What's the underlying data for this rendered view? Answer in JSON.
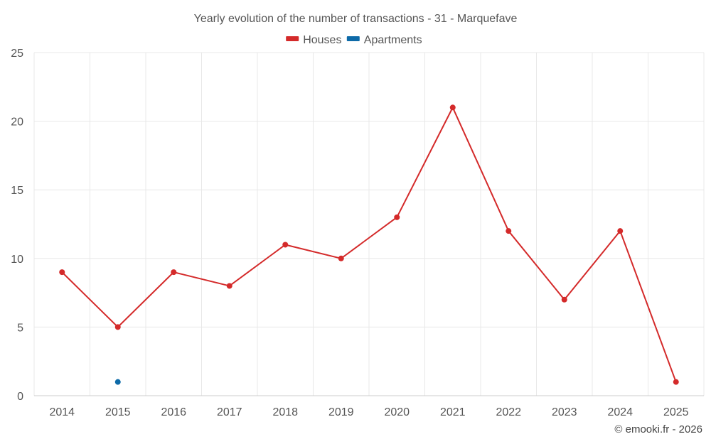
{
  "chart_data": {
    "type": "line",
    "title": "Yearly evolution of the number of transactions - 31 - Marquefave",
    "categories": [
      "2014",
      "2015",
      "2016",
      "2017",
      "2018",
      "2019",
      "2020",
      "2021",
      "2022",
      "2023",
      "2024",
      "2025"
    ],
    "ylim": [
      0,
      25
    ],
    "yticks": [
      0,
      5,
      10,
      15,
      20,
      25
    ],
    "grid": true,
    "legend_position": "top-center",
    "series": [
      {
        "name": "Houses",
        "color": "#d42a2a",
        "values": [
          9,
          5,
          9,
          8,
          11,
          10,
          13,
          21,
          12,
          7,
          12,
          1
        ]
      },
      {
        "name": "Apartments",
        "color": "#0d6aa8",
        "values": [
          null,
          1,
          null,
          null,
          null,
          null,
          null,
          null,
          null,
          null,
          null,
          null
        ]
      }
    ],
    "xlabel": "",
    "ylabel": ""
  },
  "credit": "© emooki.fr - 2026"
}
